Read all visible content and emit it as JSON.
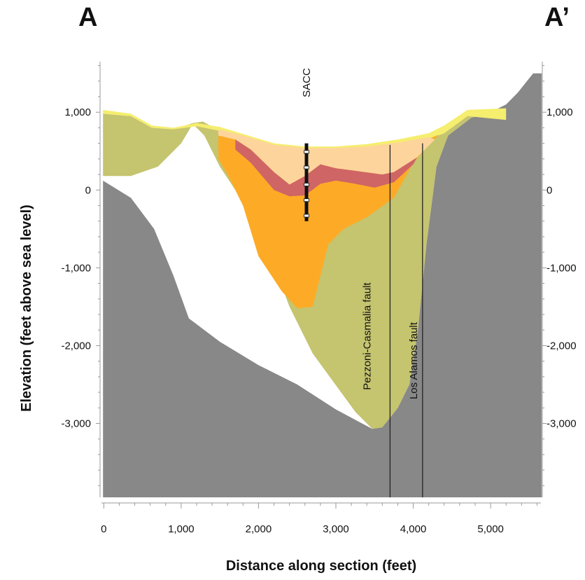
{
  "section": {
    "start_label": "A",
    "end_label": "A’"
  },
  "chart_data": {
    "type": "area",
    "title": "",
    "xlabel": "Distance along section (feet)",
    "ylabel": "Elevation (feet above sea level)",
    "xlim": [
      -30,
      5650
    ],
    "ylim": [
      -3950,
      1650
    ],
    "x_ticks": [
      0,
      1000,
      2000,
      3000,
      4000,
      5000
    ],
    "x_tick_labels": [
      "0",
      "1,000",
      "2,000",
      "3,000",
      "4,000",
      "5,000"
    ],
    "y_ticks": [
      1000,
      0,
      -1000,
      -2000,
      -3000
    ],
    "y_tick_labels": [
      "1,000",
      "0",
      "-1,000",
      "-2,000",
      "-3,000"
    ],
    "y_tick_labels_right": [
      "1,000",
      "0",
      "-1,000",
      "-2,000",
      "-3,000"
    ],
    "grid": false,
    "colors": {
      "surface_yellow": "#f5ee6e",
      "olive_unit": "#c5c46f",
      "orange_unit": "#fdab26",
      "peach_unit": "#fdd59c",
      "red_unit": "#cf6565",
      "bedrock_gray": "#888888",
      "fault_line": "#222222",
      "well": "#111111"
    },
    "faults": [
      {
        "name": "Pezzoni-Casmalia fault",
        "x": 3700,
        "top": 580
      },
      {
        "name": "Los Alamos fault",
        "x": 4120,
        "top": 600
      }
    ],
    "well": {
      "name": "SACC",
      "x": 2620,
      "top": 600,
      "bottom": -400,
      "screens": [
        490,
        290,
        70,
        -130,
        -330
      ]
    }
  }
}
